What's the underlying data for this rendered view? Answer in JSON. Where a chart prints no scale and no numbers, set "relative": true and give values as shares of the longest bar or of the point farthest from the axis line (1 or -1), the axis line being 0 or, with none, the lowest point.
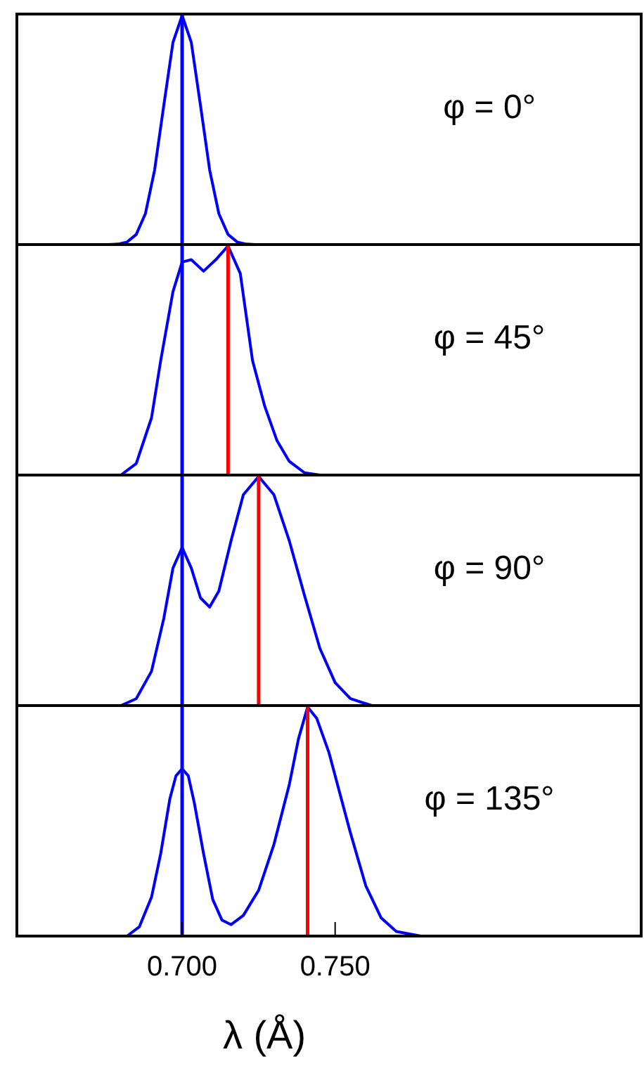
{
  "chart_data": [
    {
      "type": "line",
      "relative": true,
      "xlim": [
        0.646,
        0.85
      ],
      "tick_labels": false,
      "annotations": [
        "φ = 0°"
      ],
      "series": [
        {
          "color": "#0000ff",
          "x": [
            0.676,
            0.679,
            0.682,
            0.685,
            0.688,
            0.691,
            0.694,
            0.697,
            0.7,
            0.703,
            0.706,
            0.709,
            0.712,
            0.715,
            0.718,
            0.721,
            0.724
          ],
          "values": [
            0,
            0.002,
            0.011,
            0.044,
            0.135,
            0.325,
            0.607,
            0.882,
            1,
            0.882,
            0.607,
            0.325,
            0.135,
            0.044,
            0.011,
            0.002,
            0
          ]
        }
      ],
      "ref_lines": [
        {
          "axis": "x",
          "value": 0.7,
          "color": "#0000ff"
        }
      ]
    },
    {
      "type": "line",
      "relative": true,
      "xlim": [
        0.646,
        0.85
      ],
      "tick_labels": false,
      "annotations": [
        "φ = 45°"
      ],
      "series": [
        {
          "color": "#0000ff",
          "x": [
            0.68,
            0.685,
            0.69,
            0.693,
            0.697,
            0.7,
            0.703,
            0.707,
            0.711,
            0.715,
            0.719,
            0.723,
            0.727,
            0.731,
            0.735,
            0.74,
            0.745
          ],
          "values": [
            0,
            0.05,
            0.25,
            0.5,
            0.8,
            0.93,
            0.94,
            0.89,
            0.94,
            1,
            0.88,
            0.5,
            0.3,
            0.15,
            0.06,
            0.01,
            0
          ]
        }
      ],
      "ref_lines": [
        {
          "axis": "x",
          "value": 0.7,
          "color": "#0000ff"
        },
        {
          "axis": "x",
          "value": 0.715,
          "color": "#ff0000"
        }
      ]
    },
    {
      "type": "line",
      "relative": true,
      "xlim": [
        0.646,
        0.85
      ],
      "tick_labels": false,
      "annotations": [
        "φ = 90°"
      ],
      "series": [
        {
          "color": "#0000ff",
          "x": [
            0.68,
            0.685,
            0.69,
            0.694,
            0.697,
            0.7,
            0.703,
            0.706,
            0.709,
            0.712,
            0.716,
            0.72,
            0.725,
            0.73,
            0.735,
            0.74,
            0.745,
            0.75,
            0.755,
            0.762
          ],
          "values": [
            0,
            0.03,
            0.15,
            0.38,
            0.6,
            0.69,
            0.6,
            0.47,
            0.43,
            0.5,
            0.72,
            0.92,
            1,
            0.92,
            0.72,
            0.48,
            0.25,
            0.1,
            0.03,
            0
          ]
        }
      ],
      "ref_lines": [
        {
          "axis": "x",
          "value": 0.7,
          "color": "#0000ff"
        },
        {
          "axis": "x",
          "value": 0.725,
          "color": "#ff0000"
        }
      ]
    },
    {
      "type": "line",
      "relative": true,
      "xlim": [
        0.646,
        0.85
      ],
      "xticks": [
        {
          "value": 0.7,
          "label": "0.700"
        },
        {
          "value": 0.75,
          "label": "0.750"
        }
      ],
      "tick_labels": "x",
      "xlabel": "λ (Å)",
      "annotations": [
        "φ = 135°"
      ],
      "series": [
        {
          "color": "#0000ff",
          "x": [
            0.682,
            0.686,
            0.69,
            0.693,
            0.696,
            0.698,
            0.7,
            0.702,
            0.704,
            0.707,
            0.71,
            0.713,
            0.716,
            0.72,
            0.725,
            0.73,
            0.735,
            0.738,
            0.741,
            0.744,
            0.748,
            0.752,
            0.755,
            0.76,
            0.765,
            0.77,
            0.778
          ],
          "values": [
            0,
            0.04,
            0.17,
            0.36,
            0.6,
            0.7,
            0.73,
            0.7,
            0.58,
            0.36,
            0.16,
            0.07,
            0.05,
            0.09,
            0.2,
            0.4,
            0.66,
            0.86,
            1,
            0.95,
            0.8,
            0.6,
            0.45,
            0.22,
            0.08,
            0.02,
            0
          ]
        }
      ],
      "ref_lines": [
        {
          "axis": "x",
          "value": 0.7,
          "color": "#0000ff"
        },
        {
          "axis": "x",
          "value": 0.741,
          "color": "#ff0000"
        }
      ]
    }
  ]
}
